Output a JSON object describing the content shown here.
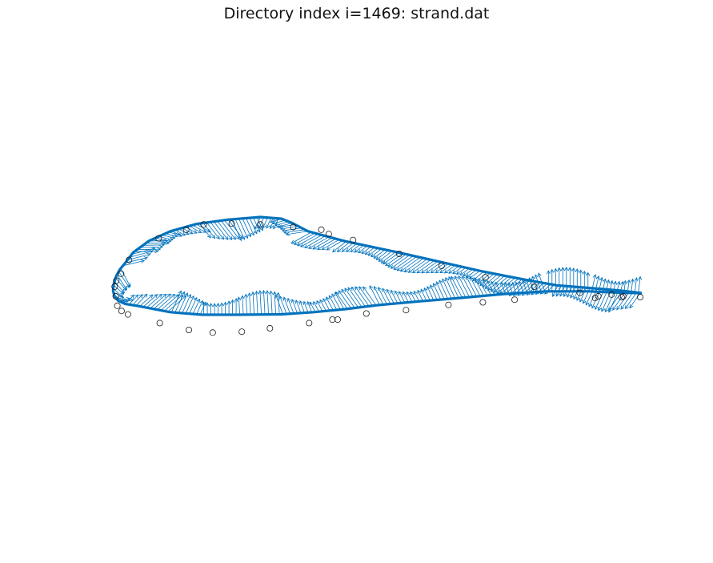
{
  "title": "Directory index i=1469: strand.dat",
  "colors": {
    "normals": "#0072BD",
    "outline": "#0072BD",
    "markers": "#1a1a1a"
  },
  "chart_data": {
    "type": "scatter",
    "title": "Directory index i=1469: strand.dat",
    "grid": false,
    "axes_visible": false,
    "xlim": [
      -0.05,
      1.05
    ],
    "ylim": [
      -0.35,
      0.2
    ],
    "series": [
      {
        "kind": "surface",
        "points": [
          [
            1.0,
            0.0
          ],
          [
            0.96,
            0.006
          ],
          [
            0.9,
            0.012
          ],
          [
            0.84,
            0.018
          ],
          [
            0.78,
            0.031
          ],
          [
            0.7,
            0.05
          ],
          [
            0.62,
            0.072
          ],
          [
            0.54,
            0.094
          ],
          [
            0.44,
            0.12
          ],
          [
            0.4,
            0.133
          ],
          [
            0.37,
            0.143
          ],
          [
            0.34,
            0.162
          ],
          [
            0.32,
            0.172
          ],
          [
            0.28,
            0.176
          ],
          [
            0.22,
            0.17
          ],
          [
            0.16,
            0.16
          ],
          [
            0.11,
            0.143
          ],
          [
            0.07,
            0.121
          ],
          [
            0.04,
            0.094
          ],
          [
            0.025,
            0.07
          ],
          [
            0.015,
            0.055
          ],
          [
            0.008,
            0.04
          ],
          [
            0.003,
            0.02
          ],
          [
            0.002,
            0.005
          ],
          [
            0.005,
            -0.008
          ],
          [
            0.012,
            -0.018
          ],
          [
            0.025,
            -0.025
          ],
          [
            0.05,
            -0.03
          ],
          [
            0.11,
            -0.044
          ],
          [
            0.17,
            -0.05
          ],
          [
            0.24,
            -0.05
          ],
          [
            0.32,
            -0.049
          ],
          [
            0.38,
            -0.044
          ],
          [
            0.44,
            -0.037
          ],
          [
            0.5,
            -0.028
          ],
          [
            0.58,
            -0.019
          ],
          [
            0.66,
            -0.011
          ],
          [
            0.74,
            -0.002
          ],
          [
            0.82,
            0.004
          ],
          [
            0.9,
            0.004
          ],
          [
            0.96,
            0.001
          ],
          [
            1.0,
            0.0
          ]
        ]
      },
      {
        "kind": "markers",
        "points": [
          [
            0.997,
            0.0
          ],
          [
            0.943,
            0.003
          ],
          [
            0.883,
            0.005
          ],
          [
            0.797,
            0.012
          ],
          [
            0.705,
            0.023
          ],
          [
            0.622,
            0.036
          ],
          [
            0.542,
            0.05
          ],
          [
            0.455,
            0.066
          ],
          [
            0.409,
            0.073
          ],
          [
            0.395,
            0.078
          ],
          [
            0.342,
            0.081
          ],
          [
            0.28,
            0.084
          ],
          [
            0.226,
            0.085
          ],
          [
            0.173,
            0.084
          ],
          [
            0.14,
            0.078
          ],
          [
            0.088,
            0.068
          ],
          [
            0.032,
            0.043
          ],
          [
            0.017,
            0.027
          ],
          [
            0.008,
            0.019
          ],
          [
            0.005,
            0.012
          ],
          [
            0.007,
            0.001
          ],
          [
            0.01,
            -0.01
          ],
          [
            0.018,
            -0.016
          ],
          [
            0.03,
            -0.02
          ],
          [
            0.09,
            -0.03
          ],
          [
            0.145,
            -0.038
          ],
          [
            0.19,
            -0.041
          ],
          [
            0.245,
            -0.04
          ],
          [
            0.298,
            -0.036
          ],
          [
            0.372,
            -0.03
          ],
          [
            0.416,
            -0.026
          ],
          [
            0.426,
            -0.026
          ],
          [
            0.48,
            -0.019
          ],
          [
            0.555,
            -0.015
          ],
          [
            0.635,
            -0.009
          ],
          [
            0.7,
            -0.006
          ],
          [
            0.76,
            -0.003
          ],
          [
            0.912,
            -0.001
          ],
          [
            0.918,
            0.001
          ],
          [
            0.962,
            0.0
          ],
          [
            0.965,
            0.001
          ]
        ]
      }
    ]
  }
}
